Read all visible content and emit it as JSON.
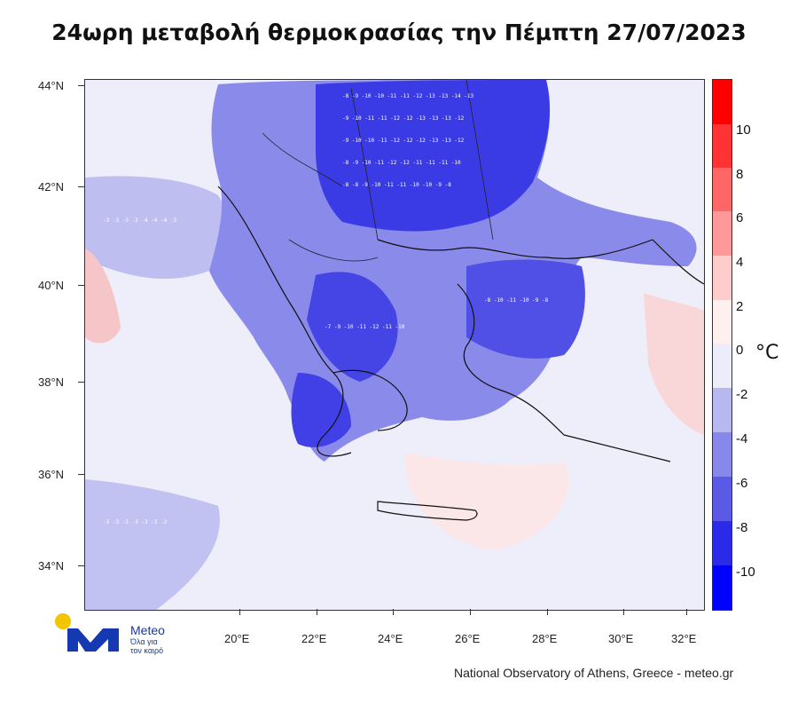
{
  "title": "24ωρη μεταβολή θερμοκρασίας την Πέμπτη 27/07/2023",
  "lat_labels": [
    "44°N",
    "42°N",
    "40°N",
    "38°N",
    "36°N",
    "34°N"
  ],
  "lon_labels": [
    "20°E",
    "22°E",
    "24°E",
    "26°E",
    "28°E",
    "30°E",
    "32°E"
  ],
  "colorbar": {
    "unit": "°C",
    "labels": [
      "10",
      "8",
      "6",
      "4",
      "2",
      "0",
      "-2",
      "-4",
      "-6",
      "-8",
      "-10"
    ],
    "colors": [
      "#ff0000",
      "#ff3333",
      "#ff6666",
      "#ff9999",
      "#ffcccc",
      "#fff0f0",
      "#ececfb",
      "#b8b8f0",
      "#8888ea",
      "#5a5ae6",
      "#2a2ae8",
      "#0000ff"
    ]
  },
  "logo": {
    "name": "Meteo",
    "tagline_line1": "Όλα για",
    "tagline_line2": "τον καιρό"
  },
  "credit": "National Observatory of Athens, Greece - meteo.gr"
}
